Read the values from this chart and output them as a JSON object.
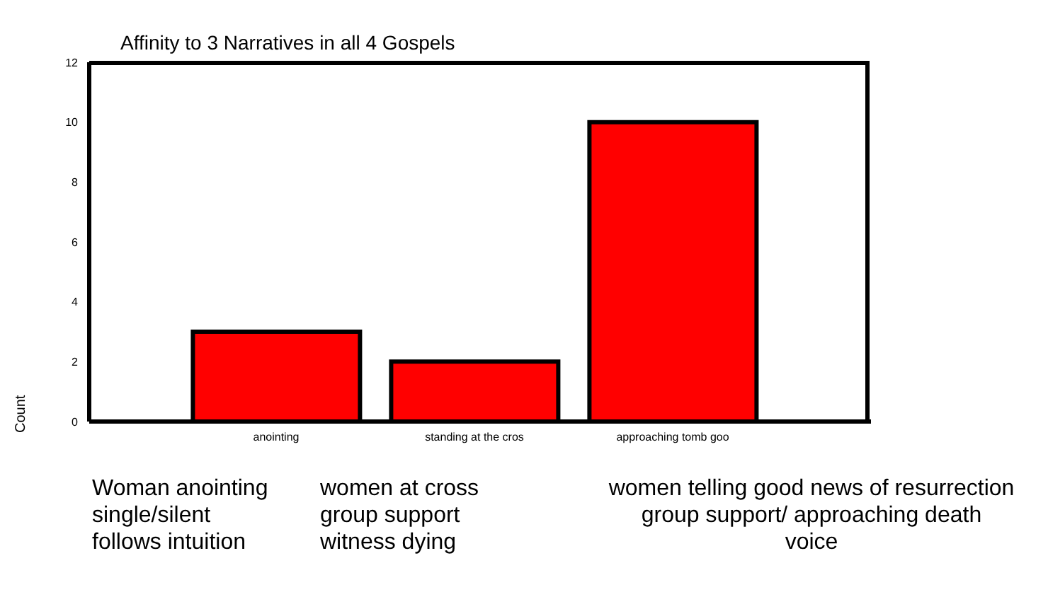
{
  "chart_data": {
    "type": "bar",
    "title": "Affinity to 3 Narratives in all 4 Gospels",
    "ylabel": "Count",
    "categories": [
      "anointing",
      "standing at the cros",
      "approaching tomb goo"
    ],
    "values": [
      3,
      2,
      10
    ],
    "color": "#ff0000",
    "ylim": [
      0,
      12
    ],
    "yticks": [
      0,
      2,
      4,
      6,
      8,
      10,
      12
    ],
    "grid": false,
    "legend": false,
    "annotations": [
      "Woman anointing\nsingle/silent\nfollows intuition",
      "women at cross\ngroup support\nwitness dying",
      "women telling good news of resurrection\ngroup support/ approaching death\nvoice"
    ]
  }
}
